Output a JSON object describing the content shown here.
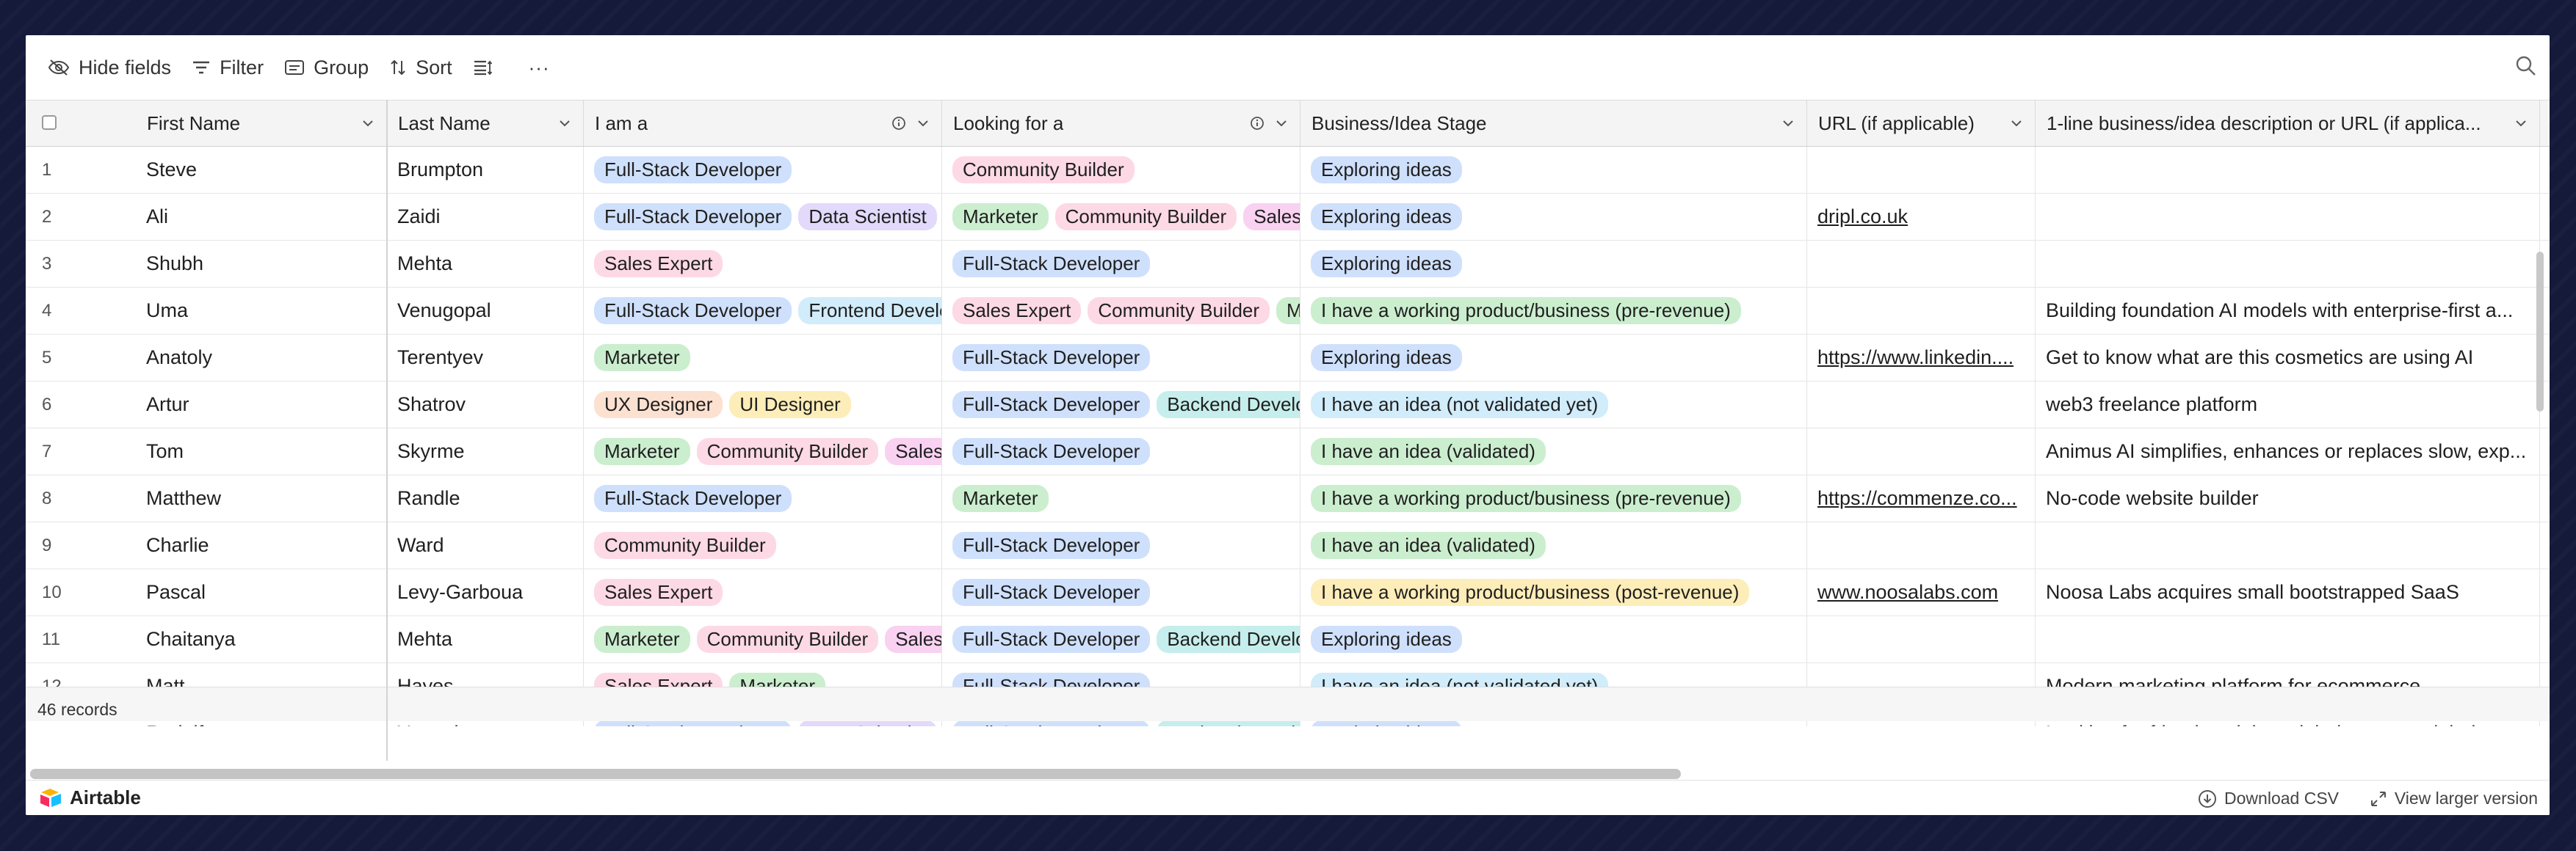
{
  "toolbar": {
    "hide_fields": "Hide fields",
    "filter": "Filter",
    "group": "Group",
    "sort": "Sort",
    "more": "···"
  },
  "columns": {
    "first_name": "First Name",
    "last_name": "Last Name",
    "i_am_a": "I am a",
    "looking_for": "Looking for a",
    "stage": "Business/Idea Stage",
    "url": "URL (if applicable)",
    "description": "1-line business/idea description or URL (if applica..."
  },
  "rows": [
    {
      "num": "1",
      "first": "Steve",
      "last": "Brumpton",
      "iam": [
        {
          "t": "Full-Stack Developer",
          "c": "blue"
        }
      ],
      "looking": [
        {
          "t": "Community Builder",
          "c": "pink"
        }
      ],
      "stage": {
        "t": "Exploring ideas",
        "c": "blue"
      },
      "url": "",
      "desc": ""
    },
    {
      "num": "2",
      "first": "Ali",
      "last": "Zaidi",
      "iam": [
        {
          "t": "Full-Stack Developer",
          "c": "blue"
        },
        {
          "t": "Data Scientist",
          "c": "purple"
        }
      ],
      "looking": [
        {
          "t": "Marketer",
          "c": "green"
        },
        {
          "t": "Community Builder",
          "c": "pink"
        },
        {
          "t": "Sales Expert",
          "c": "magenta"
        }
      ],
      "stage": {
        "t": "Exploring ideas",
        "c": "blue"
      },
      "url": "dripl.co.uk",
      "desc": ""
    },
    {
      "num": "3",
      "first": "Shubh",
      "last": "Mehta",
      "iam": [
        {
          "t": "Sales Expert",
          "c": "pink"
        }
      ],
      "looking": [
        {
          "t": "Full-Stack Developer",
          "c": "blue"
        }
      ],
      "stage": {
        "t": "Exploring ideas",
        "c": "blue"
      },
      "url": "",
      "desc": ""
    },
    {
      "num": "4",
      "first": "Uma",
      "last": "Venugopal",
      "iam": [
        {
          "t": "Full-Stack Developer",
          "c": "blue"
        },
        {
          "t": "Frontend Developer",
          "c": "cyan"
        }
      ],
      "looking": [
        {
          "t": "Sales Expert",
          "c": "pink"
        },
        {
          "t": "Community Builder",
          "c": "pink"
        },
        {
          "t": "Marketer",
          "c": "green"
        }
      ],
      "stage": {
        "t": "I have a working product/business (pre-revenue)",
        "c": "green"
      },
      "url": "",
      "desc": "Building foundation AI models with enterprise-first a..."
    },
    {
      "num": "5",
      "first": "Anatoly",
      "last": "Terentyev",
      "iam": [
        {
          "t": "Marketer",
          "c": "green"
        }
      ],
      "looking": [
        {
          "t": "Full-Stack Developer",
          "c": "blue"
        }
      ],
      "stage": {
        "t": "Exploring ideas",
        "c": "blue"
      },
      "url": "https://www.linkedin....",
      "desc": "Get to know what are this cosmetics are using AI"
    },
    {
      "num": "6",
      "first": "Artur",
      "last": "Shatrov",
      "iam": [
        {
          "t": "UX Designer",
          "c": "orange"
        },
        {
          "t": "UI Designer",
          "c": "yellow"
        }
      ],
      "looking": [
        {
          "t": "Full-Stack Developer",
          "c": "blue"
        },
        {
          "t": "Backend Developer",
          "c": "teal"
        }
      ],
      "stage": {
        "t": "I have an idea (not validated yet)",
        "c": "cyan"
      },
      "url": "",
      "desc": "web3 freelance platform"
    },
    {
      "num": "7",
      "first": "Tom",
      "last": "Skyrme",
      "iam": [
        {
          "t": "Marketer",
          "c": "green"
        },
        {
          "t": "Community Builder",
          "c": "pink"
        },
        {
          "t": "Sales Expert",
          "c": "magenta"
        }
      ],
      "looking": [
        {
          "t": "Full-Stack Developer",
          "c": "blue"
        }
      ],
      "stage": {
        "t": "I have an idea (validated)",
        "c": "green"
      },
      "url": "",
      "desc": "Animus AI simplifies, enhances or replaces slow, exp..."
    },
    {
      "num": "8",
      "first": "Matthew",
      "last": "Randle",
      "iam": [
        {
          "t": "Full-Stack Developer",
          "c": "blue"
        }
      ],
      "looking": [
        {
          "t": "Marketer",
          "c": "green"
        }
      ],
      "stage": {
        "t": "I have a working product/business (pre-revenue)",
        "c": "green"
      },
      "url": "https://commenze.co...",
      "desc": "No-code website builder"
    },
    {
      "num": "9",
      "first": "Charlie",
      "last": "Ward",
      "iam": [
        {
          "t": "Community Builder",
          "c": "pink"
        }
      ],
      "looking": [
        {
          "t": "Full-Stack Developer",
          "c": "blue"
        }
      ],
      "stage": {
        "t": "I have an idea (validated)",
        "c": "green"
      },
      "url": "",
      "desc": ""
    },
    {
      "num": "10",
      "first": "Pascal",
      "last": "Levy-Garboua",
      "iam": [
        {
          "t": "Sales Expert",
          "c": "pink"
        }
      ],
      "looking": [
        {
          "t": "Full-Stack Developer",
          "c": "blue"
        }
      ],
      "stage": {
        "t": "I have a working product/business (post-revenue)",
        "c": "yellow"
      },
      "url": "www.noosalabs.com",
      "desc": "Noosa Labs acquires small bootstrapped SaaS"
    },
    {
      "num": "11",
      "first": "Chaitanya",
      "last": "Mehta",
      "iam": [
        {
          "t": "Marketer",
          "c": "green"
        },
        {
          "t": "Community Builder",
          "c": "pink"
        },
        {
          "t": "Sales Expert",
          "c": "magenta"
        }
      ],
      "looking": [
        {
          "t": "Full-Stack Developer",
          "c": "blue"
        },
        {
          "t": "Backend Developer",
          "c": "teal"
        }
      ],
      "stage": {
        "t": "Exploring ideas",
        "c": "blue"
      },
      "url": "",
      "desc": ""
    },
    {
      "num": "12",
      "first": "Matt",
      "last": "Hayes",
      "iam": [
        {
          "t": "Sales Expert",
          "c": "pink"
        },
        {
          "t": "Marketer",
          "c": "green"
        }
      ],
      "looking": [
        {
          "t": "Full-Stack Developer",
          "c": "blue"
        }
      ],
      "stage": {
        "t": "I have an idea (not validated yet)",
        "c": "cyan"
      },
      "url": "",
      "desc": "Modern marketing platform for ecommerce"
    },
    {
      "num": "13",
      "first": "Rodolfo",
      "last": "Yamada",
      "iam": [
        {
          "t": "Full-Stack Developer",
          "c": "blue"
        },
        {
          "t": "Data Scientist",
          "c": "purple"
        }
      ],
      "looking": [
        {
          "t": "Full-Stack Developer",
          "c": "blue"
        },
        {
          "t": "Backend Developer",
          "c": "teal"
        }
      ],
      "stage": {
        "t": "Exploring ideas",
        "c": "blue"
      },
      "url": "",
      "desc": "Looking for friends to join a sight in a network hub"
    }
  ],
  "summary": {
    "records": "46 records"
  },
  "bottom": {
    "brand": "Airtable",
    "download": "Download CSV",
    "larger": "View larger version"
  }
}
